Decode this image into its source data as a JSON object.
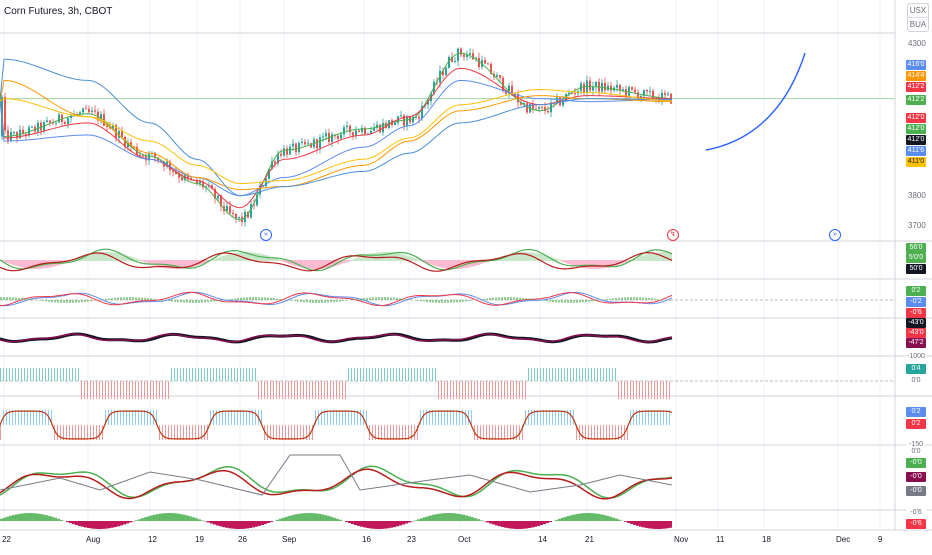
{
  "title": "Corn Futures, 3h, CBOT",
  "currency": {
    "line1": "USX",
    "line2": "BUA"
  },
  "colors": {
    "candle_up": "#26a69a",
    "candle_down": "#ef5350",
    "ma_fast_green": "#4caf50",
    "ma_red": "#f23645",
    "ma_blue_short": "#5b8def",
    "ma_orange": "#ff9800",
    "ma_yellow": "#ffc107",
    "ma_long_blue": "#4a90d9",
    "projection": "#2962ff",
    "hline_green": "#a5d6a7",
    "grid": "#f0f3fa",
    "pane_border": "#d1d4dc"
  },
  "price_axis_labels": [
    "4300",
    "3800",
    "3700"
  ],
  "price_badges": [
    {
      "text": "416'0",
      "bg": "#5b8def"
    },
    {
      "text": "414'4",
      "bg": "#ff9800"
    },
    {
      "text": "412'2",
      "bg": "#f23645"
    },
    {
      "text": "412'2",
      "bg": "#4caf50"
    },
    {
      "text": "412'0",
      "bg": "#f23645"
    },
    {
      "text": "412'0",
      "bg": "#4caf50"
    },
    {
      "text": "412'0",
      "bg": "#131722"
    },
    {
      "text": "411'6",
      "bg": "#5b8def"
    },
    {
      "text": "411'0",
      "bg": "#ffc107"
    }
  ],
  "indicator_badges": [
    {
      "text": "56'0",
      "bg": "#4caf50"
    },
    {
      "text": "5'0'0",
      "bg": "#4caf50"
    },
    {
      "text": "50'0",
      "bg": "#131722"
    },
    {
      "text": "0'2",
      "bg": "#4caf50"
    },
    {
      "text": "-0'2",
      "bg": "#5b8def"
    },
    {
      "text": "-0'6",
      "bg": "#f23645"
    },
    {
      "text": "-43'0",
      "bg": "#131722"
    },
    {
      "text": "-43'0",
      "bg": "#f23645"
    },
    {
      "text": "-47'2",
      "bg": "#880e4f"
    },
    {
      "text": "-1000",
      "bg": "#ffffff"
    },
    {
      "text": "0'4",
      "bg": "#26a69a"
    },
    {
      "text": "0'0",
      "bg": "#ffffff"
    },
    {
      "text": "0'2",
      "bg": "#5b8def"
    },
    {
      "text": "0'2",
      "bg": "#f23645"
    },
    {
      "text": "-150",
      "bg": "#ffffff"
    },
    {
      "text": "0'0",
      "bg": "#ffffff"
    },
    {
      "text": "-0'0",
      "bg": "#4caf50"
    },
    {
      "text": "-0'0",
      "bg": "#880e4f"
    },
    {
      "text": "-0'0",
      "bg": "#787b86"
    },
    {
      "text": "-0'6",
      "bg": "#ffffff"
    },
    {
      "text": "-0'6",
      "bg": "#f23645"
    }
  ],
  "time_labels": [
    "22",
    "Aug",
    "12",
    "19",
    "26",
    "Sep",
    "16",
    "23",
    "Oct",
    "14",
    "21",
    "Nov",
    "11",
    "18",
    "Dec",
    "9"
  ],
  "chart_data": {
    "type": "line",
    "title": "Corn Futures, 3h, CBOT",
    "x": [
      "22",
      "Aug",
      "12",
      "19",
      "26",
      "Sep",
      "16",
      "23",
      "Oct",
      "14",
      "21",
      "Nov"
    ],
    "ylim": [
      3650,
      4350
    ],
    "y_ticks": [
      3700,
      3800,
      4300
    ],
    "series": [
      {
        "values": [
          3995,
          4070,
          3930,
          3840,
          3720,
          3950,
          4020,
          4050,
          4270,
          4080,
          4160,
          4120
        ]
      },
      {
        "values": [
          3990,
          4040,
          3920,
          3850,
          3760,
          3920,
          4000,
          4060,
          4220,
          4100,
          4130,
          4120
        ]
      },
      {
        "values": [
          3980,
          4000,
          3920,
          3860,
          3800,
          3860,
          3960,
          4030,
          4180,
          4120,
          4110,
          4118
        ]
      },
      {
        "values": [
          4180,
          4060,
          3940,
          3860,
          3820,
          3830,
          3900,
          3980,
          4080,
          4130,
          4120,
          4110
        ]
      },
      {
        "values": [
          4250,
          4180,
          4040,
          3920,
          3800,
          3830,
          3880,
          3940,
          4040,
          4100,
          4120,
          4116
        ]
      }
    ],
    "projection_arc": true,
    "grid": true,
    "indicator_panes": 8
  }
}
